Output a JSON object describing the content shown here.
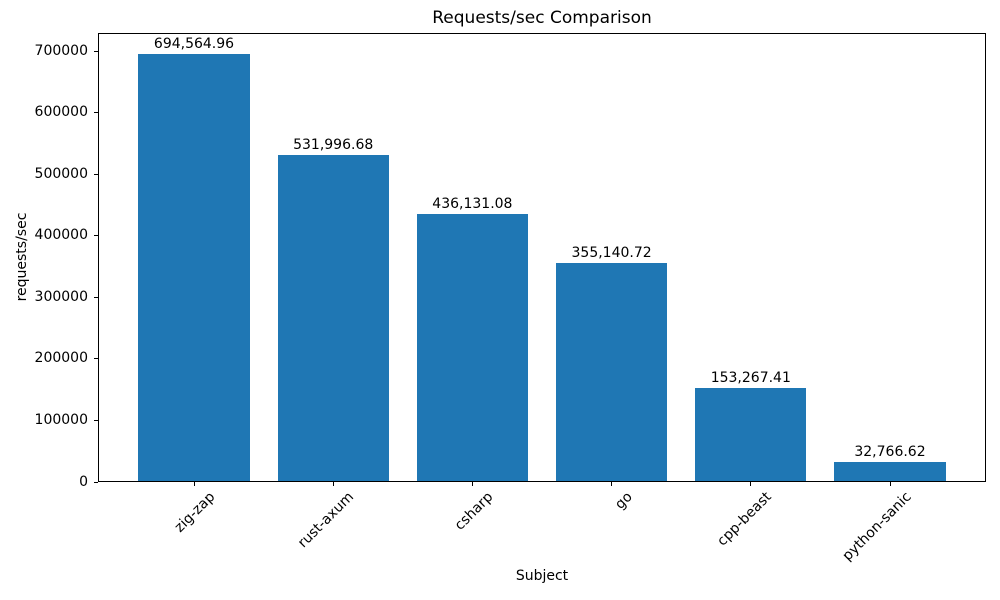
{
  "chart_data": {
    "type": "bar",
    "title": "Requests/sec Comparison",
    "xlabel": "Subject",
    "ylabel": "requests/sec",
    "categories": [
      "zig-zap",
      "rust-axum",
      "csharp",
      "go",
      "cpp-beast",
      "python-sanic"
    ],
    "values": [
      694564.96,
      531996.68,
      436131.08,
      355140.72,
      153267.41,
      32766.62
    ],
    "value_labels": [
      "694,564.96",
      "531,996.68",
      "436,131.08",
      "355,140.72",
      "153,267.41",
      "32,766.62"
    ],
    "ylim": [
      0,
      729293
    ],
    "yticks": [
      0,
      100000,
      200000,
      300000,
      400000,
      500000,
      600000,
      700000
    ],
    "ytick_labels": [
      "0",
      "100000",
      "200000",
      "300000",
      "400000",
      "500000",
      "600000",
      "700000"
    ],
    "bar_color": "#1f77b4",
    "text_color": "#000000",
    "background_color": "#ffffff",
    "grid": false,
    "legend_position": null,
    "x_tick_rotation_deg": 45,
    "bar_width_fraction": 0.8
  }
}
